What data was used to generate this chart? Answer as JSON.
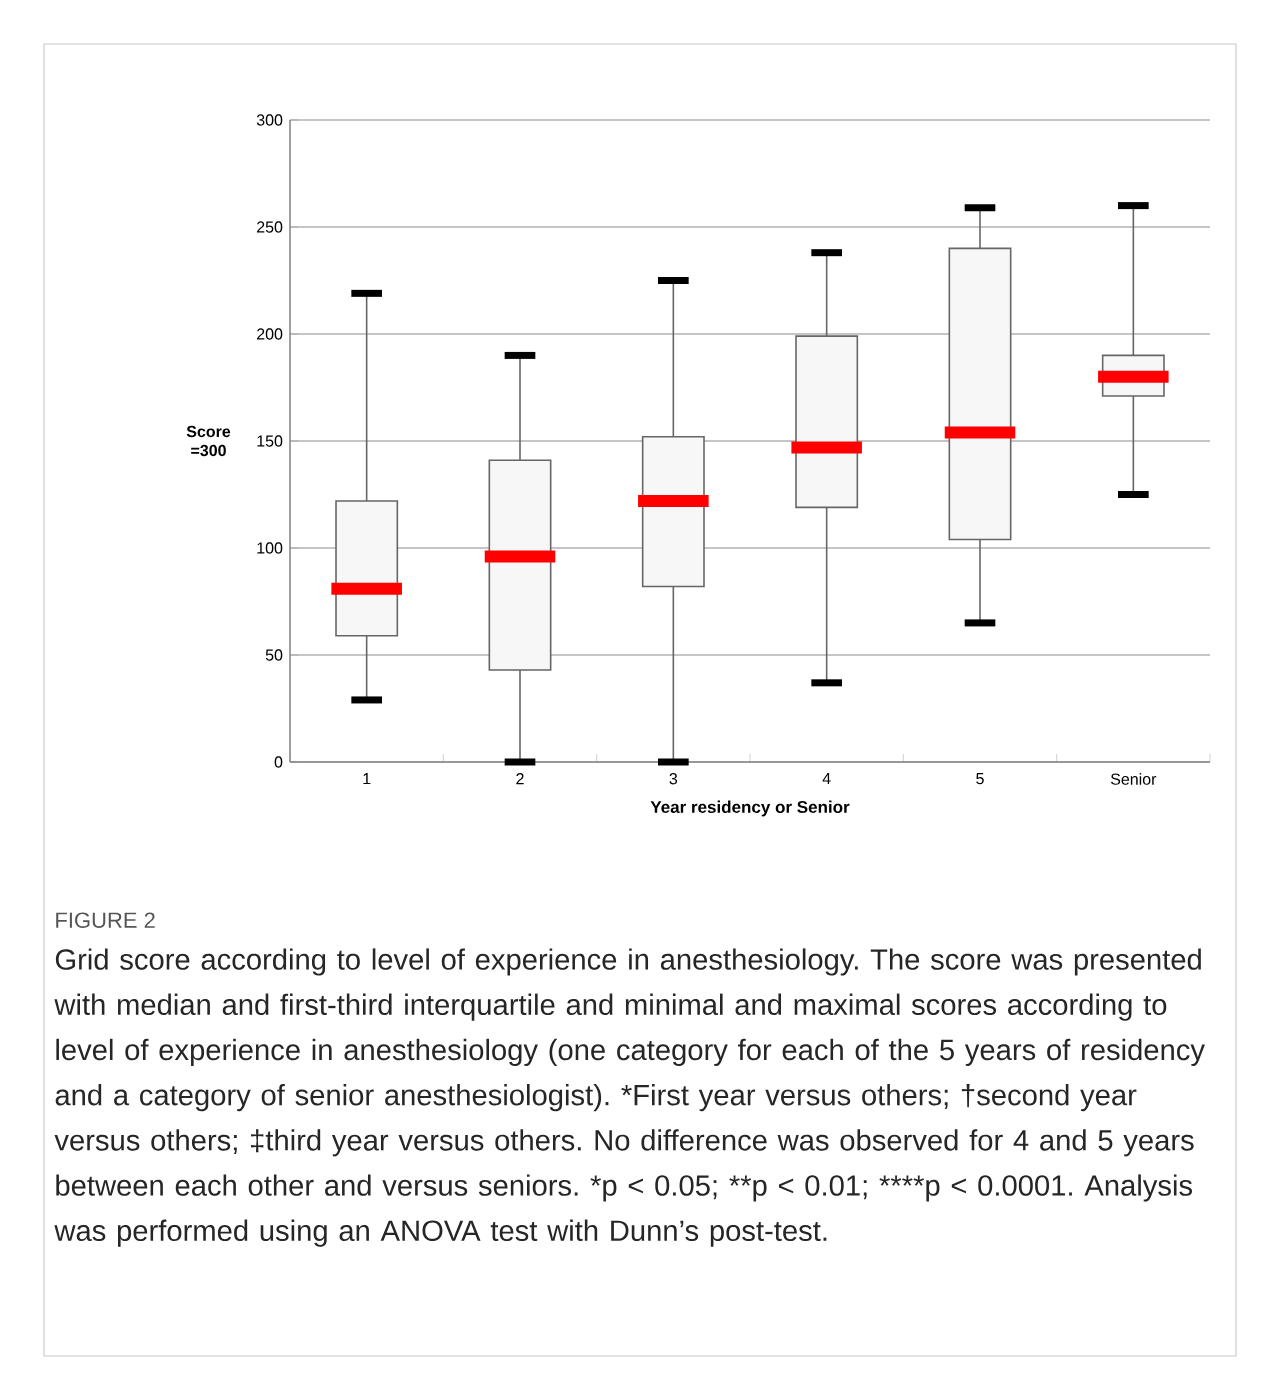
{
  "chart_data": {
    "type": "box",
    "title": "FIGURE 2",
    "xlabel": "Year residency or Senior",
    "ylabel": "Score =300",
    "categories": [
      "1",
      "2",
      "3",
      "4",
      "5",
      "Senior"
    ],
    "boxes": [
      {
        "low": 29,
        "q1": 59,
        "median": 81,
        "q3": 122,
        "high": 219
      },
      {
        "low": 0,
        "q1": 43,
        "median": 96,
        "q3": 141,
        "high": 190
      },
      {
        "low": 0,
        "q1": 82,
        "median": 122,
        "q3": 152,
        "high": 225
      },
      {
        "low": 37,
        "q1": 119,
        "median": 147,
        "q3": 199,
        "high": 238
      },
      {
        "low": 65,
        "q1": 104,
        "median": 154,
        "q3": 240,
        "high": 259
      },
      {
        "low": 125,
        "q1": 171,
        "median": 180,
        "q3": 190,
        "high": 260
      }
    ],
    "ylim": [
      0,
      300
    ],
    "yticks": [
      0,
      50,
      100,
      150,
      200,
      250,
      300
    ],
    "grid": "y",
    "annotations": [
      "Grid score according to level of experience in anesthesiology. The score was presented with median and first-third interquartile and minimal and maximal scores according to level of experience in anesthesiology (one category for each of the 5 years of residency and a category of senior anesthesiologist).",
      "*First year versus others; †second year versus others; ‡third year versus others.",
      "No difference was observed for 4 and 5 years between each other and versus seniors.",
      "*p < 0.05;",
      "**p < 0.01;",
      "****p < 0.0001.",
      "Analysis was performed using an ANOVA test with Dunn’s post-test."
    ]
  }
}
